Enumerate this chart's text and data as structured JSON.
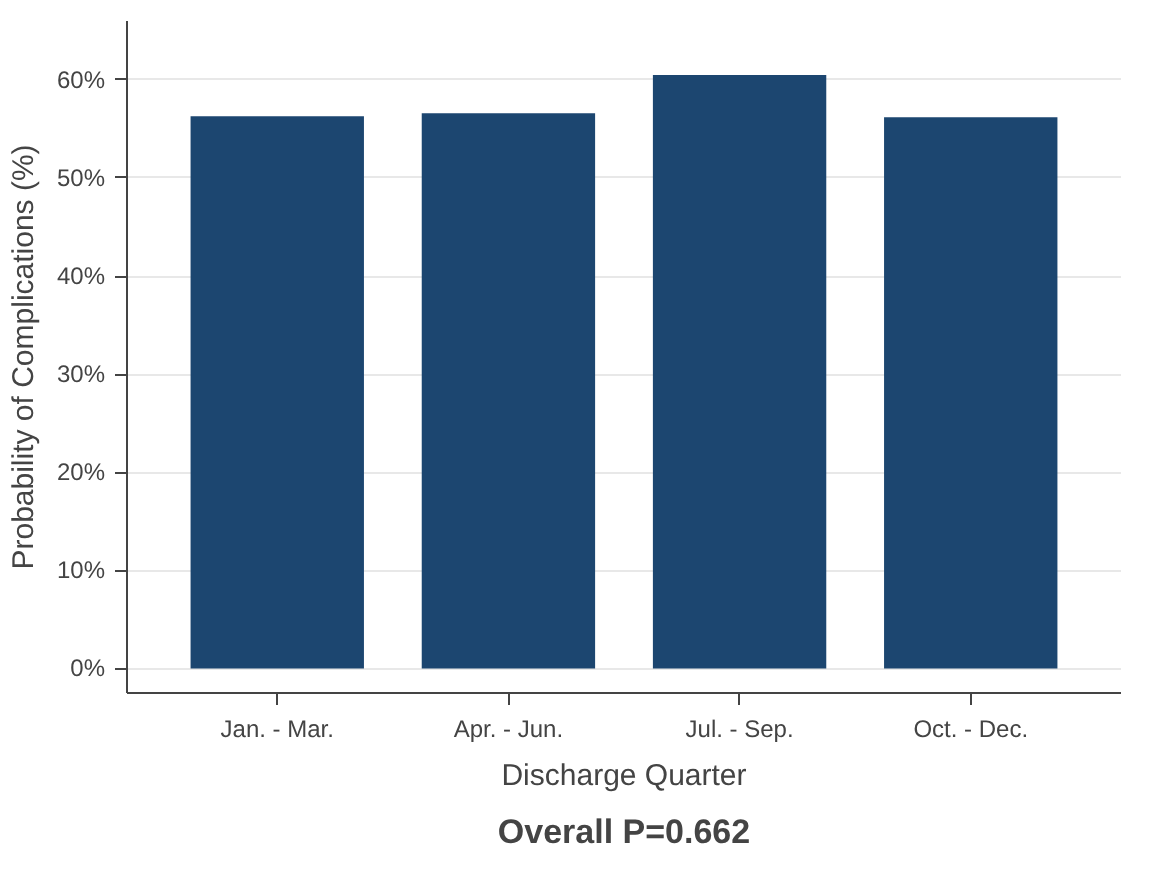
{
  "chart_data": {
    "type": "bar",
    "categories": [
      "Jan. - Mar.",
      "Apr. - Jun.",
      "Jul. - Sep.",
      "Oct. - Dec."
    ],
    "values": [
      56.3,
      56.6,
      60.5,
      56.2
    ],
    "color": "#1c4670",
    "xlabel": "Discharge Quarter",
    "ylabel": "Probability of Complications (%)",
    "ylim": [
      -2.5,
      66
    ],
    "yticks": [
      {
        "value": 0,
        "label": "0%"
      },
      {
        "value": 10,
        "label": "10%"
      },
      {
        "value": 20,
        "label": "20%"
      },
      {
        "value": 30,
        "label": "30%"
      },
      {
        "value": 40,
        "label": "40%"
      },
      {
        "value": 50,
        "label": "50%"
      },
      {
        "value": 60,
        "label": "60%"
      }
    ],
    "grid": "y",
    "annotations": [
      "Overall P=0.662"
    ]
  }
}
